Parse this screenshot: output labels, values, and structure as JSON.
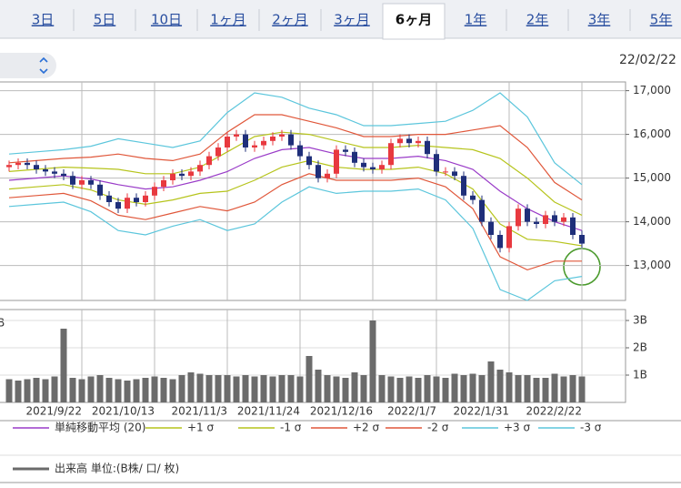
{
  "tabs": [
    "3日",
    "5日",
    "10日",
    "1ヶ月",
    "2ヶ月",
    "3ヶ月",
    "6ヶ月",
    "1年",
    "2年",
    "3年",
    "5年"
  ],
  "active_tab": 6,
  "date": "22/02/22",
  "chart_data": [
    {
      "type": "candlestick",
      "xlim": [
        -1,
        67.8
      ],
      "ylim": [
        12200,
        17200
      ],
      "yticks": [
        {
          "value": 13000,
          "label": "13,000"
        },
        {
          "value": 14000,
          "label": "14,000"
        },
        {
          "value": 15000,
          "label": "15,000"
        },
        {
          "value": 16000,
          "label": "16,000"
        },
        {
          "value": 17000,
          "label": "17,000"
        }
      ],
      "up_color": "#e8393f",
      "down_color": "#1f2f7a",
      "open": [
        15250,
        15300,
        15350,
        15300,
        15200,
        15150,
        15100,
        15050,
        14850,
        14950,
        14850,
        14600,
        14450,
        14300,
        14550,
        14450,
        14600,
        14800,
        14950,
        15100,
        15050,
        15150,
        15300,
        15500,
        15700,
        15950,
        16000,
        15700,
        15750,
        15850,
        15950,
        16000,
        15750,
        15500,
        15300,
        15000,
        15100,
        15650,
        15600,
        15350,
        15250,
        15200,
        15300,
        15800,
        15900,
        15800,
        15850,
        15550,
        15150,
        15150,
        15050,
        14600,
        14500,
        14000,
        13700,
        13400,
        13900,
        14300,
        14000,
        13950,
        14150,
        14000,
        14100,
        13700
      ],
      "high": [
        15400,
        15450,
        15450,
        15400,
        15300,
        15250,
        15200,
        15150,
        15050,
        15050,
        14950,
        14700,
        14550,
        14650,
        14650,
        14700,
        14900,
        15050,
        15200,
        15200,
        15250,
        15400,
        15600,
        15800,
        16050,
        16100,
        16100,
        15850,
        15950,
        16050,
        16100,
        16100,
        15850,
        15600,
        15400,
        15200,
        15750,
        15750,
        15700,
        15450,
        15350,
        15400,
        15900,
        16000,
        16000,
        15950,
        15950,
        15650,
        15250,
        15250,
        15150,
        14700,
        14600,
        14100,
        13800,
        14000,
        14400,
        14400,
        14100,
        14250,
        14250,
        14200,
        14200,
        13800
      ],
      "low": [
        15150,
        15200,
        15200,
        15100,
        15050,
        15000,
        14950,
        14750,
        14750,
        14750,
        14500,
        14350,
        14200,
        14200,
        14350,
        14350,
        14500,
        14700,
        14850,
        14950,
        14950,
        15050,
        15200,
        15400,
        15600,
        15850,
        15600,
        15600,
        15650,
        15750,
        15850,
        15650,
        15400,
        15200,
        14900,
        14900,
        15000,
        15500,
        15250,
        15150,
        15100,
        15100,
        15200,
        15700,
        15700,
        15700,
        15450,
        15050,
        15050,
        14950,
        14500,
        14400,
        13900,
        13600,
        13300,
        13300,
        13800,
        13900,
        13850,
        13850,
        13900,
        13900,
        13600,
        13400
      ],
      "close": [
        15300,
        15350,
        15300,
        15200,
        15150,
        15100,
        15050,
        14850,
        14950,
        14850,
        14600,
        14450,
        14300,
        14550,
        14450,
        14600,
        14800,
        14950,
        15100,
        15050,
        15150,
        15300,
        15500,
        15700,
        15950,
        16000,
        15700,
        15750,
        15850,
        15950,
        16000,
        15750,
        15500,
        15300,
        15000,
        15100,
        15650,
        15600,
        15350,
        15250,
        15200,
        15300,
        15800,
        15900,
        15800,
        15850,
        15550,
        15150,
        15150,
        15050,
        14600,
        14500,
        14000,
        13700,
        13400,
        13900,
        14300,
        14000,
        13950,
        14150,
        14000,
        14100,
        13700,
        13500
      ],
      "bands_x": [
        0,
        3,
        6,
        9,
        12,
        15,
        18,
        21,
        24,
        27,
        30,
        33,
        36,
        39,
        42,
        45,
        48,
        51,
        54,
        57,
        60,
        63
      ],
      "series": [
        {
          "name": "単純移動平均 (20)",
          "color": "#9a3cc8",
          "values": [
            14950,
            15000,
            15050,
            14980,
            14850,
            14750,
            14800,
            14950,
            15150,
            15450,
            15650,
            15700,
            15550,
            15450,
            15450,
            15500,
            15400,
            15200,
            14700,
            14300,
            14000,
            13800
          ]
        },
        {
          "name": "+1 σ",
          "color": "#b6c41c",
          "values": [
            15150,
            15200,
            15250,
            15230,
            15200,
            15100,
            15100,
            15250,
            15600,
            15950,
            16050,
            16000,
            15850,
            15700,
            15700,
            15750,
            15700,
            15650,
            15450,
            15000,
            14450,
            14150
          ]
        },
        {
          "name": "-1 σ",
          "color": "#b6c41c",
          "values": [
            14750,
            14800,
            14850,
            14730,
            14500,
            14400,
            14500,
            14650,
            14700,
            14950,
            15250,
            15400,
            15250,
            15200,
            15200,
            15250,
            15100,
            14750,
            13950,
            13600,
            13550,
            13450
          ]
        },
        {
          "name": "+2 σ",
          "color": "#e0573a",
          "values": [
            15350,
            15400,
            15450,
            15480,
            15550,
            15450,
            15400,
            15550,
            16050,
            16450,
            16450,
            16300,
            16150,
            15950,
            15950,
            16000,
            16000,
            16100,
            16200,
            15700,
            14900,
            14500
          ]
        },
        {
          "name": "-2 σ",
          "color": "#e0573a",
          "values": [
            14550,
            14600,
            14650,
            14480,
            14150,
            14050,
            14200,
            14350,
            14250,
            14450,
            14850,
            15100,
            14950,
            14950,
            14950,
            15000,
            14800,
            14300,
            13200,
            12900,
            13100,
            13100
          ]
        },
        {
          "name": "+3 σ",
          "color": "#5cc6dc",
          "values": [
            15550,
            15600,
            15650,
            15730,
            15900,
            15800,
            15700,
            15850,
            16500,
            16950,
            16850,
            16600,
            16450,
            16200,
            16200,
            16250,
            16300,
            16550,
            16950,
            16400,
            15350,
            14850
          ]
        },
        {
          "name": "-3 σ",
          "color": "#5cc6dc",
          "values": [
            14350,
            14400,
            14450,
            14230,
            13800,
            13700,
            13900,
            14050,
            13800,
            13950,
            14450,
            14800,
            14650,
            14700,
            14700,
            14750,
            14500,
            13850,
            12450,
            12200,
            12650,
            12750
          ]
        }
      ]
    },
    {
      "type": "bar",
      "name": "出来高 単位:(B株/ 口/ 枚)",
      "color": "#6b6b6b",
      "xlim": [
        -1,
        67.8
      ],
      "ylim": [
        0,
        3.4
      ],
      "yticks": [
        {
          "value": 1,
          "label": "1B"
        },
        {
          "value": 2,
          "label": "2B"
        },
        {
          "value": 3,
          "label": "3B"
        }
      ],
      "xticks": [
        {
          "value": 8,
          "label": "2021/9/22"
        },
        {
          "value": 16,
          "label": "2021/10/13"
        },
        {
          "value": 24,
          "label": "2021/11/3"
        },
        {
          "value": 32,
          "label": "2021/11/24"
        },
        {
          "value": 40,
          "label": "2021/12/16"
        },
        {
          "value": 47,
          "label": "2022/1/7"
        },
        {
          "value": 55,
          "label": "2022/1/31"
        },
        {
          "value": 63,
          "label": "2022/2/22"
        }
      ],
      "values": [
        0.85,
        0.8,
        0.85,
        0.9,
        0.85,
        0.95,
        2.7,
        0.9,
        0.85,
        0.95,
        1.0,
        0.9,
        0.85,
        0.8,
        0.85,
        0.9,
        0.95,
        0.9,
        0.85,
        1.0,
        1.1,
        1.05,
        1.0,
        1.0,
        1.0,
        0.95,
        1.0,
        0.95,
        1.0,
        0.95,
        1.0,
        1.0,
        0.95,
        1.7,
        1.2,
        1.0,
        0.95,
        0.9,
        1.1,
        1.0,
        3.0,
        1.0,
        0.95,
        0.9,
        0.95,
        0.9,
        1.0,
        0.95,
        0.9,
        1.05,
        1.0,
        1.05,
        1.0,
        1.5,
        1.2,
        1.1,
        1.0,
        1.0,
        0.9,
        0.9,
        1.05,
        0.95,
        1.0,
        0.95
      ]
    }
  ]
}
